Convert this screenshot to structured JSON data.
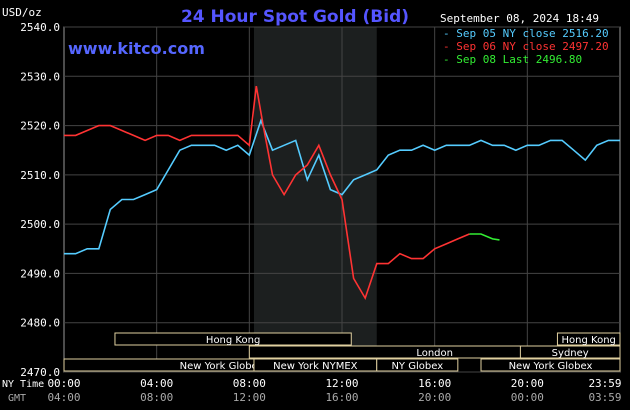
{
  "chart_data": {
    "type": "line",
    "title": "24 Hour Spot Gold (Bid)",
    "watermark": "www.kitco.com",
    "timestamp": "September 08, 2024 18:49",
    "y_unit": "USD/oz",
    "ylim": [
      2470,
      2540
    ],
    "yticks": [
      "2540.0",
      "2530.0",
      "2520.0",
      "2510.0",
      "2500.0",
      "2490.0",
      "2480.0",
      "2470.0"
    ],
    "xlim": [
      0,
      24
    ],
    "x_ticks_ny": [
      "00:00",
      "04:00",
      "08:00",
      "12:00",
      "16:00",
      "20:00",
      "23:59"
    ],
    "x_ticks_gmt": [
      "04:00",
      "08:00",
      "12:00",
      "16:00",
      "20:00",
      "00:00",
      "03:59"
    ],
    "x_label_ny": "NY Time",
    "x_label_gmt": "GMT",
    "grid": true,
    "legend_position": "top-right",
    "market_hours": [
      {
        "name": "Hong Kong",
        "row": 0,
        "start": 2.2,
        "end": 12.4
      },
      {
        "name": "Hong Kong",
        "row": 0,
        "start": 21.3,
        "end": 24.0
      },
      {
        "name": "London",
        "row": 1,
        "start": 8.0,
        "end": 25.0
      },
      {
        "name": "Sydney",
        "row": 1,
        "start": 19.7,
        "end": 24.0
      },
      {
        "name": "New York Globex",
        "row": 2,
        "start": 0.0,
        "end": 13.6
      },
      {
        "name": "New York NYMEX",
        "row": 2,
        "start": 8.2,
        "end": 13.5
      },
      {
        "name": "NY Globex",
        "row": 2,
        "start": 13.5,
        "end": 17.0
      },
      {
        "name": "New York Globex",
        "row": 2,
        "start": 18.0,
        "end": 24.0
      }
    ],
    "series": [
      {
        "name": "Sep 05 NY close 2516.20",
        "color": "#55ccff",
        "x": [
          0,
          0.5,
          1,
          1.5,
          2,
          2.5,
          3,
          3.5,
          4,
          4.5,
          5,
          5.5,
          6,
          6.5,
          7,
          7.5,
          8,
          8.5,
          9,
          9.5,
          10,
          10.5,
          11,
          11.5,
          12,
          12.5,
          13,
          13.5,
          14,
          14.5,
          15,
          15.5,
          16,
          16.5,
          17,
          17.5,
          18,
          18.5,
          19,
          19.5,
          20,
          20.5,
          21,
          21.5,
          22,
          22.5,
          23,
          23.5,
          24
        ],
        "y": [
          2494,
          2494,
          2495,
          2495,
          2503,
          2505,
          2505,
          2506,
          2507,
          2511,
          2515,
          2516,
          2516,
          2516,
          2515,
          2516,
          2514,
          2521,
          2515,
          2516,
          2517,
          2509,
          2514,
          2507,
          2506,
          2509,
          2510,
          2511,
          2514,
          2515,
          2515,
          2516,
          2515,
          2516,
          2516,
          2516,
          2517,
          2516,
          2516,
          2515,
          2516,
          2516,
          2517,
          2517,
          2515,
          2513,
          2516,
          2517,
          2517
        ]
      },
      {
        "name": "Sep 06 NY close 2497.20",
        "color": "#ff3333",
        "x": [
          0,
          0.5,
          1,
          1.5,
          2,
          2.5,
          3,
          3.5,
          4,
          4.5,
          5,
          5.5,
          6,
          6.5,
          7,
          7.5,
          8,
          8.3,
          8.6,
          9,
          9.5,
          10,
          10.5,
          11,
          11.5,
          12,
          12.5,
          13,
          13.5,
          14,
          14.5,
          15,
          15.5,
          16,
          16.5,
          17,
          17.5
        ],
        "y": [
          2518,
          2518,
          2519,
          2520,
          2520,
          2519,
          2518,
          2517,
          2518,
          2518,
          2517,
          2518,
          2518,
          2518,
          2518,
          2518,
          2516,
          2528,
          2520,
          2510,
          2506,
          2510,
          2512,
          2516,
          2510,
          2505,
          2489,
          2485,
          2492,
          2492,
          2494,
          2493,
          2493,
          2495,
          2496,
          2497,
          2498
        ]
      },
      {
        "name": "Sep 08 Last 2496.80",
        "color": "#33ee33",
        "x": [
          17.5,
          18,
          18.5,
          18.8
        ],
        "y": [
          2498,
          2498,
          2497,
          2496.8
        ]
      }
    ]
  }
}
